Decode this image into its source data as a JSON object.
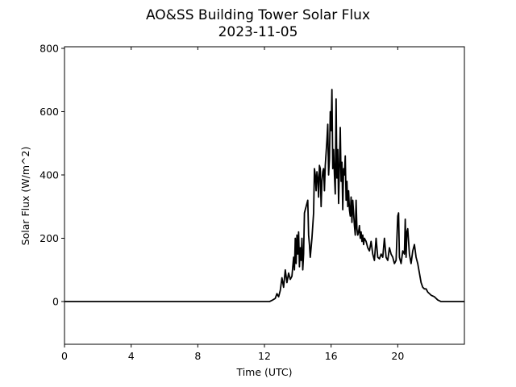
{
  "chart_data": {
    "type": "line",
    "title": "AO&SS Building Tower Solar Flux",
    "subtitle": "2023-11-05",
    "xlabel": "Time (UTC)",
    "ylabel": "Solar Flux (W/m^2)",
    "xlim": [
      0,
      24
    ],
    "ylim": [
      -135,
      805
    ],
    "xticks": [
      0,
      4,
      8,
      12,
      16,
      20
    ],
    "xtick_labels": [
      "0",
      "4",
      "8",
      "12",
      "16",
      "20"
    ],
    "yticks": [
      0,
      200,
      400,
      600,
      800
    ],
    "ytick_labels": [
      "0",
      "200",
      "400",
      "600",
      "800"
    ],
    "grid": false,
    "legend": "none",
    "line_color": "#000000",
    "series": [
      {
        "x": [
          0,
          4,
          8,
          12,
          12.3,
          12.5,
          12.65,
          12.75,
          12.85,
          12.95,
          13.05,
          13.15,
          13.25,
          13.35,
          13.45,
          13.55,
          13.65,
          13.75,
          13.8,
          13.85,
          13.9,
          13.95,
          14.0,
          14.05,
          14.1,
          14.15,
          14.2,
          14.25,
          14.3,
          14.35,
          14.4,
          14.45,
          14.5,
          14.55,
          14.6,
          14.65,
          14.7,
          14.75,
          14.85,
          14.95,
          15.0,
          15.05,
          15.1,
          15.15,
          15.2,
          15.25,
          15.3,
          15.35,
          15.4,
          15.45,
          15.5,
          15.55,
          15.6,
          15.65,
          15.7,
          15.75,
          15.8,
          15.85,
          15.9,
          15.95,
          16.0,
          16.05,
          16.1,
          16.15,
          16.2,
          16.25,
          16.3,
          16.35,
          16.4,
          16.45,
          16.5,
          16.55,
          16.6,
          16.65,
          16.7,
          16.75,
          16.8,
          16.85,
          16.9,
          16.95,
          17.0,
          17.05,
          17.1,
          17.15,
          17.2,
          17.25,
          17.3,
          17.35,
          17.4,
          17.45,
          17.5,
          17.55,
          17.6,
          17.65,
          17.7,
          17.75,
          17.8,
          17.85,
          17.9,
          17.95,
          18.0,
          18.1,
          18.2,
          18.3,
          18.4,
          18.5,
          18.6,
          18.7,
          18.8,
          18.9,
          19.0,
          19.1,
          19.2,
          19.3,
          19.4,
          19.5,
          19.6,
          19.7,
          19.8,
          19.9,
          20.0,
          20.05,
          20.1,
          20.2,
          20.3,
          20.4,
          20.45,
          20.5,
          20.55,
          20.6,
          20.7,
          20.8,
          20.9,
          21.0,
          21.1,
          21.2,
          21.3,
          21.4,
          21.5,
          21.6,
          21.7,
          21.8,
          22.0,
          22.2,
          22.4,
          22.6,
          22.8,
          23.0,
          23.5,
          24.0
        ],
        "y": [
          0,
          0,
          0,
          0,
          0,
          5,
          10,
          25,
          15,
          35,
          75,
          45,
          100,
          60,
          90,
          70,
          80,
          140,
          100,
          200,
          120,
          210,
          150,
          220,
          110,
          170,
          130,
          200,
          100,
          150,
          280,
          290,
          300,
          310,
          320,
          210,
          180,
          140,
          200,
          280,
          420,
          400,
          350,
          410,
          390,
          330,
          430,
          420,
          300,
          380,
          410,
          420,
          350,
          430,
          470,
          510,
          560,
          400,
          450,
          600,
          540,
          670,
          420,
          480,
          400,
          340,
          640,
          390,
          480,
          310,
          430,
          550,
          380,
          440,
          290,
          420,
          400,
          460,
          320,
          380,
          300,
          350,
          290,
          270,
          330,
          250,
          320,
          280,
          240,
          210,
          320,
          230,
          210,
          220,
          240,
          200,
          220,
          190,
          210,
          180,
          200,
          190,
          170,
          160,
          190,
          150,
          130,
          200,
          140,
          135,
          150,
          140,
          200,
          140,
          130,
          170,
          150,
          140,
          120,
          130,
          270,
          280,
          140,
          120,
          160,
          150,
          260,
          140,
          220,
          230,
          150,
          120,
          160,
          180,
          140,
          120,
          90,
          60,
          45,
          40,
          40,
          30,
          20,
          15,
          5,
          0,
          0,
          0,
          0,
          0
        ]
      }
    ]
  }
}
